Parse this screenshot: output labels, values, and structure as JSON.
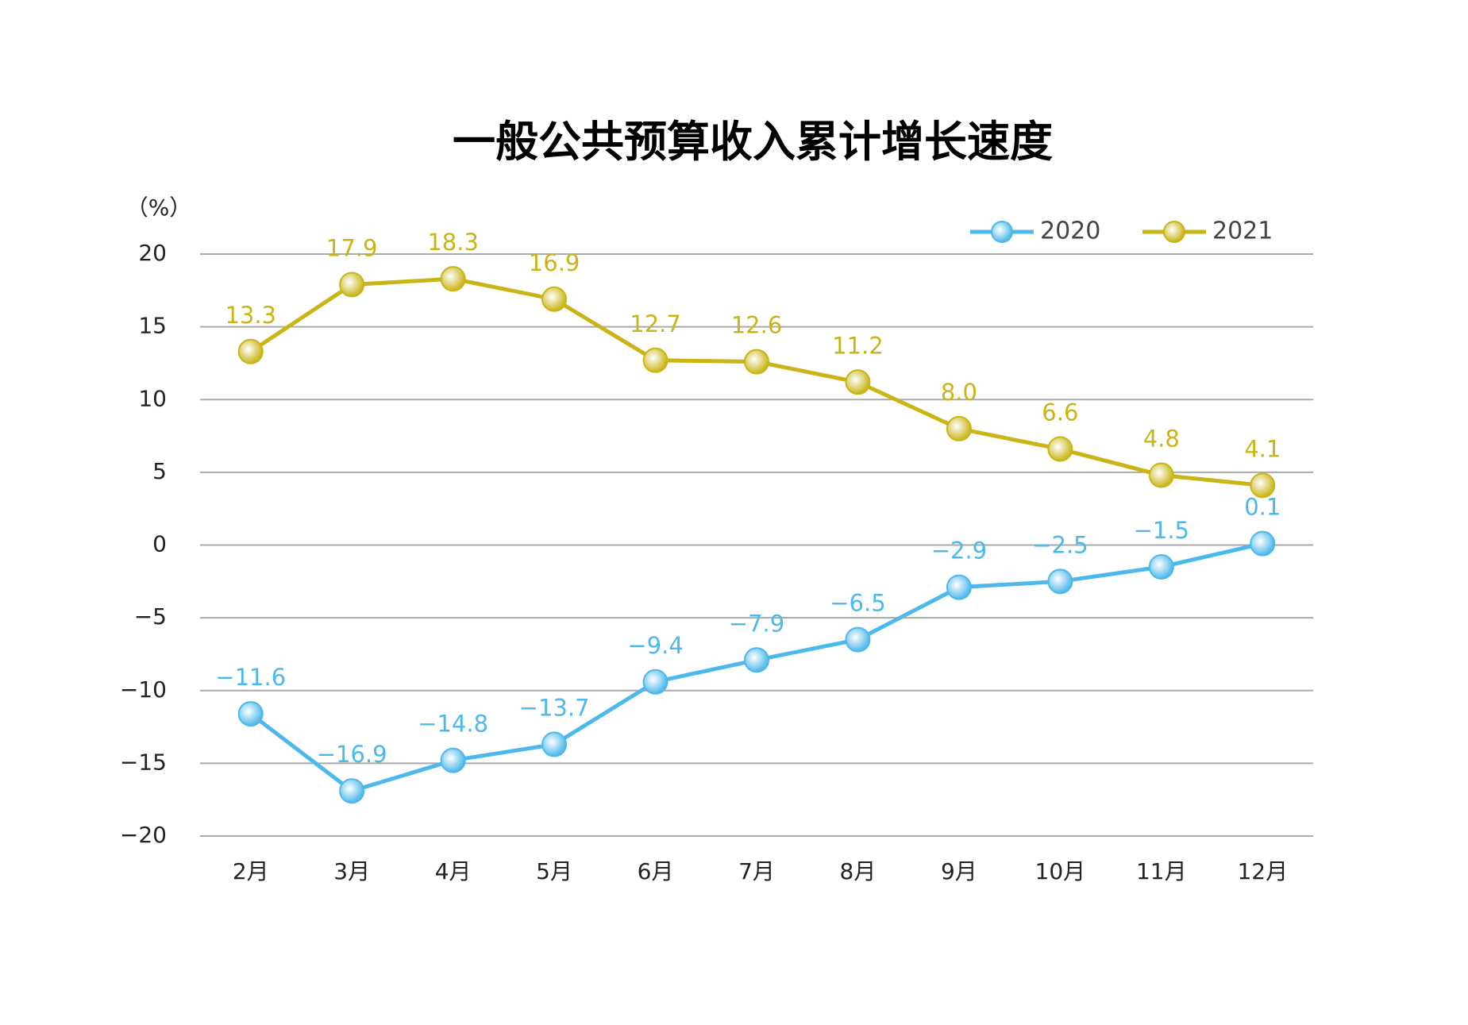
{
  "chart_data": {
    "type": "line",
    "title": "一般公共预算收入累计增长速度",
    "y_label": "（%）",
    "categories": [
      "2月",
      "3月",
      "4月",
      "5月",
      "6月",
      "7月",
      "8月",
      "9月",
      "10月",
      "11月",
      "12月"
    ],
    "series": [
      {
        "name": "2020",
        "color": "#4db8ea",
        "values": [
          -11.6,
          -16.9,
          -14.8,
          -13.7,
          -9.4,
          -7.9,
          -6.5,
          -2.9,
          -2.5,
          -1.5,
          0.1
        ],
        "value_labels": [
          "−11.6",
          "−16.9",
          "−14.8",
          "−13.7",
          "−9.4",
          "−7.9",
          "−6.5",
          "−2.9",
          "−2.5",
          "−1.5",
          "0.1"
        ]
      },
      {
        "name": "2021",
        "color": "#c9b516",
        "values": [
          13.3,
          17.9,
          18.3,
          16.9,
          12.7,
          12.6,
          11.2,
          8.0,
          6.6,
          4.8,
          4.1
        ],
        "value_labels": [
          "13.3",
          "17.9",
          "18.3",
          "16.9",
          "12.7",
          "12.6",
          "11.2",
          "8.0",
          "6.6",
          "4.8",
          "4.1"
        ]
      }
    ],
    "ylim": [
      -20,
      20
    ],
    "yticks": [
      {
        "value": -20,
        "label": "−20"
      },
      {
        "value": -15,
        "label": "−15"
      },
      {
        "value": -10,
        "label": "−10"
      },
      {
        "value": -5,
        "label": "−5"
      },
      0,
      5,
      10,
      15,
      20
    ],
    "grid": true,
    "legend": "top-right"
  }
}
